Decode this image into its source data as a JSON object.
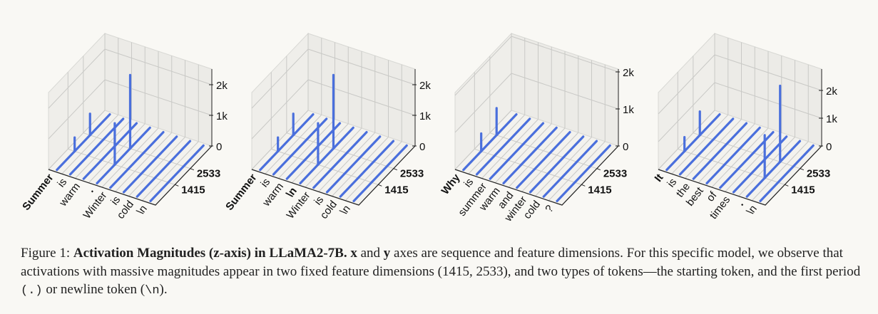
{
  "figure": {
    "caption": {
      "prefix": "Figure 1: ",
      "bold_title": "Activation Magnitudes (z-axis) in LLaMA2-7B.",
      "x_bold": "x",
      "and": " and ",
      "y_bold": "y",
      "rest1": " axes are sequence and feature dimensions. For this specific model, we observe that activations with massive magnitudes appear in two fixed feature dimensions (1415, 2533), and two types of tokens—the starting token, and the first period ",
      "period_code": "(.)",
      "rest2": " or newline token (",
      "newline_code": "\\n",
      "rest3": ")."
    }
  },
  "chart_data": [
    {
      "type": "3d-line",
      "x": {
        "tokens": [
          "Summer",
          "is",
          "warm",
          ".",
          "Winter",
          "is",
          "cold",
          "\\n"
        ],
        "bold": [
          true,
          false,
          false,
          true,
          false,
          false,
          false,
          false
        ]
      },
      "y": {
        "range": [
          0,
          4096
        ],
        "ticks": [
          1415,
          2533
        ],
        "tick_labels": [
          "1415",
          "2533"
        ]
      },
      "z": {
        "ticks": [
          0,
          1000,
          2000
        ],
        "tick_labels": [
          "0",
          "1k",
          "2k"
        ]
      },
      "spikes": [
        {
          "token": 0,
          "feature": 1415,
          "value": 450
        },
        {
          "token": 0,
          "feature": 2533,
          "value": 700
        },
        {
          "token": 3,
          "feature": 1415,
          "value": 1350
        },
        {
          "token": 3,
          "feature": 2533,
          "value": 2400
        }
      ],
      "color": "#4a6fdc"
    },
    {
      "type": "3d-line",
      "x": {
        "tokens": [
          "Summer",
          "is",
          "warm",
          "\\n",
          "Winter",
          "is",
          "cold",
          "\\n"
        ],
        "bold": [
          true,
          false,
          false,
          true,
          false,
          false,
          false,
          false
        ]
      },
      "y": {
        "range": [
          0,
          4096
        ],
        "ticks": [
          1415,
          2533
        ],
        "tick_labels": [
          "1415",
          "2533"
        ]
      },
      "z": {
        "ticks": [
          0,
          1000,
          2000
        ],
        "tick_labels": [
          "0",
          "1k",
          "2k"
        ]
      },
      "spikes": [
        {
          "token": 0,
          "feature": 1415,
          "value": 450
        },
        {
          "token": 0,
          "feature": 2533,
          "value": 700
        },
        {
          "token": 3,
          "feature": 1415,
          "value": 1350
        },
        {
          "token": 3,
          "feature": 2533,
          "value": 2400
        }
      ],
      "color": "#4a6fdc"
    },
    {
      "type": "3d-line",
      "x": {
        "tokens": [
          "Why",
          "is",
          "summer",
          "warm",
          "and",
          "winter",
          "cold",
          "?"
        ],
        "bold": [
          true,
          false,
          false,
          false,
          false,
          false,
          false,
          false
        ]
      },
      "y": {
        "range": [
          0,
          4096
        ],
        "ticks": [
          1415,
          2533
        ],
        "tick_labels": [
          "1415",
          "2533"
        ]
      },
      "z": {
        "ticks": [
          0,
          1000,
          2000
        ],
        "tick_labels": [
          "0",
          "1k",
          "2k"
        ]
      },
      "spikes": [
        {
          "token": 0,
          "feature": 1415,
          "value": 480
        },
        {
          "token": 0,
          "feature": 2533,
          "value": 730
        }
      ],
      "color": "#4a6fdc"
    },
    {
      "type": "3d-line",
      "x": {
        "tokens": [
          "It",
          "is",
          "the",
          "best",
          "of",
          "times",
          ".",
          "\\n"
        ],
        "bold": [
          true,
          false,
          false,
          false,
          false,
          false,
          true,
          false
        ]
      },
      "y": {
        "range": [
          0,
          4096
        ],
        "ticks": [
          1415,
          2533
        ],
        "tick_labels": [
          "1415",
          "2533"
        ]
      },
      "z": {
        "ticks": [
          0,
          1000,
          2000
        ],
        "tick_labels": [
          "0",
          "1k",
          "2k"
        ]
      },
      "spikes": [
        {
          "token": 0,
          "feature": 1415,
          "value": 510
        },
        {
          "token": 0,
          "feature": 2533,
          "value": 850
        },
        {
          "token": 6,
          "feature": 1415,
          "value": 1540
        },
        {
          "token": 6,
          "feature": 2533,
          "value": 2740
        }
      ],
      "color": "#4a6fdc"
    }
  ]
}
